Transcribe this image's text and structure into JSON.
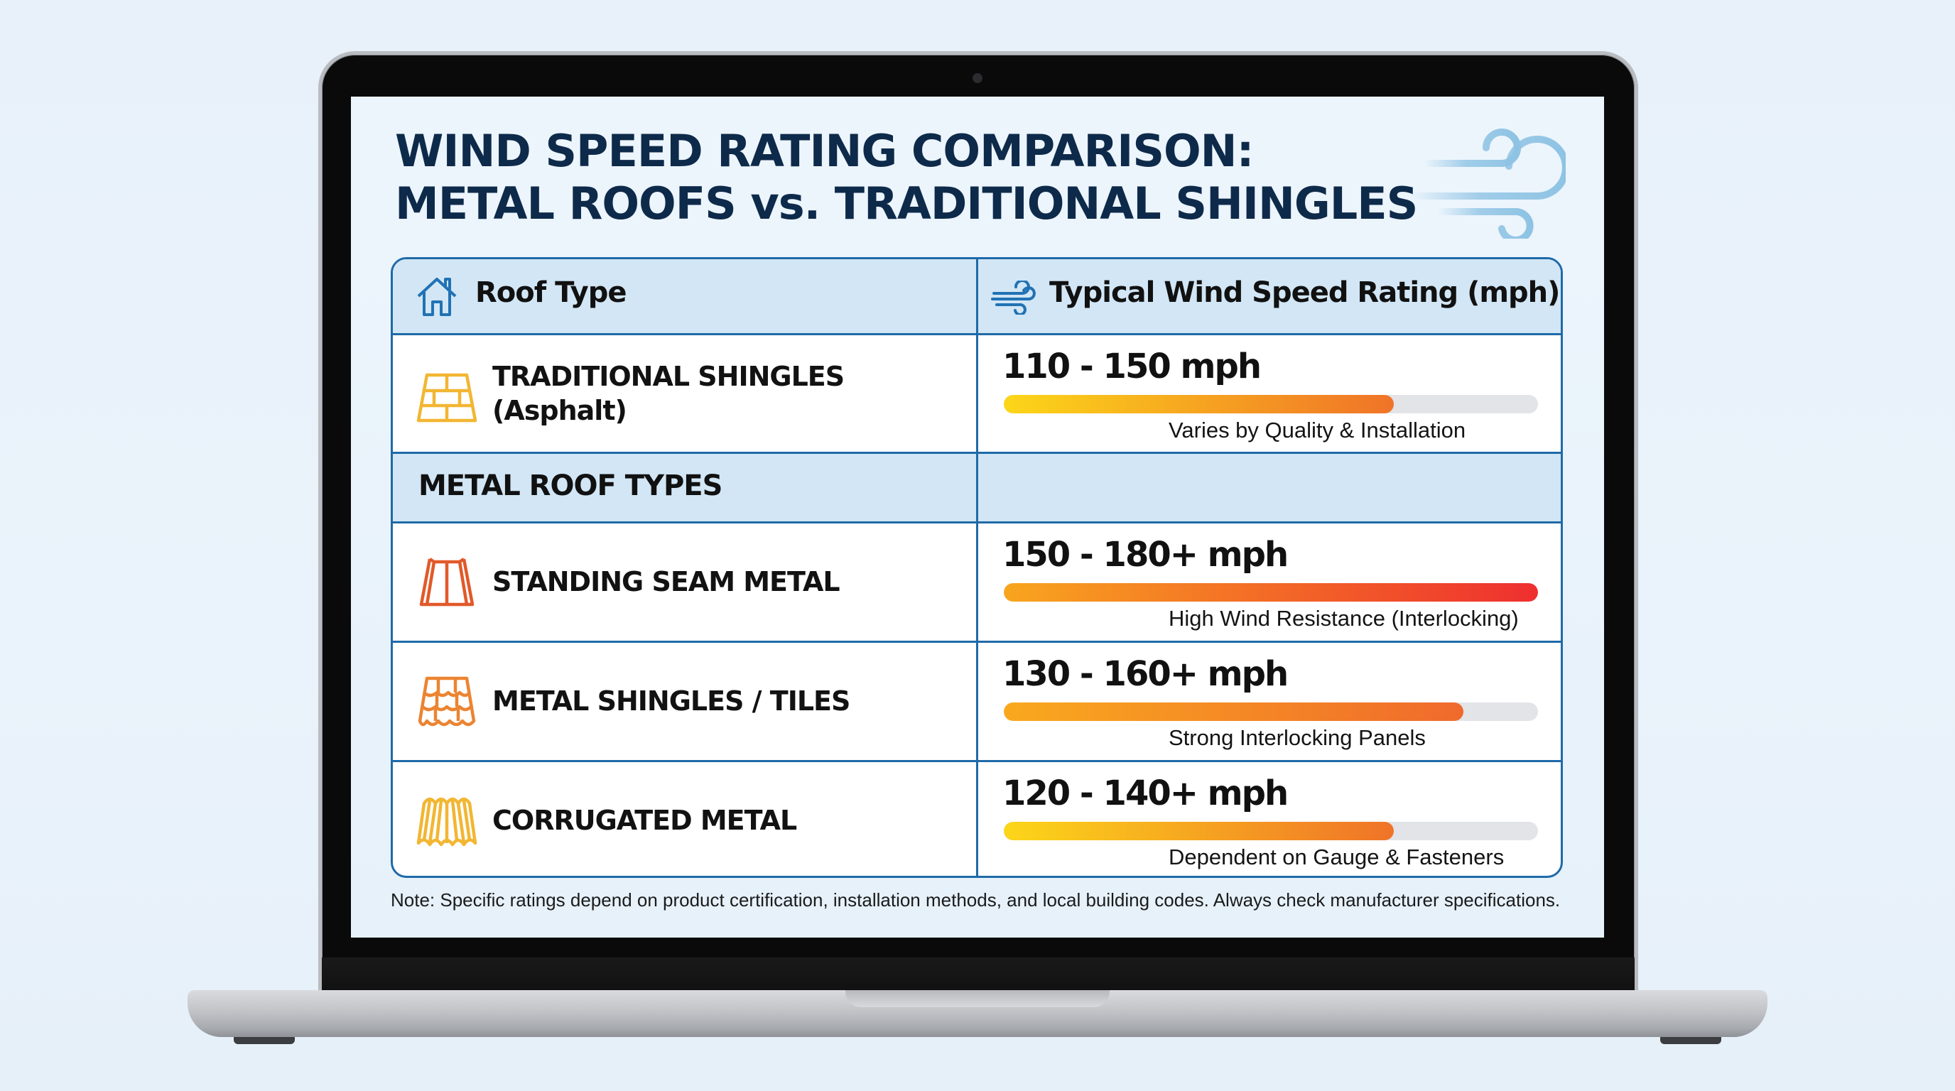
{
  "page": {
    "title_line1": "WIND SPEED RATING COMPARISON:",
    "title_line2": "METAL ROOFS vs. TRADITIONAL SHINGLES",
    "decor_icon": "wind-icon"
  },
  "table": {
    "headers": {
      "roof_type": {
        "label": "Roof Type",
        "icon": "house-icon"
      },
      "rating": {
        "label": "Typical Wind Speed Rating (mph)",
        "icon": "wind-icon"
      }
    },
    "section_label": "METAL ROOF TYPES",
    "rows": [
      {
        "name": "TRADITIONAL SHINGLES",
        "sub": "(Asphalt)",
        "icon": "asphalt-shingles-icon",
        "icon_color": "#f2b632",
        "rating": "110 - 150 mph",
        "note": "Varies by Quality & Installation",
        "bar_pct": 73,
        "bar_from": "#fcd619",
        "bar_to": "#f07328"
      },
      {
        "name": "STANDING SEAM METAL",
        "icon": "standing-seam-icon",
        "icon_color": "#e2592a",
        "rating": "150 - 180+ mph",
        "note": "High Wind Resistance (Interlocking)",
        "bar_pct": 100,
        "bar_from": "#f8a51f",
        "bar_to": "#ee2f2f"
      },
      {
        "name": "METAL SHINGLES / TILES",
        "icon": "metal-tiles-icon",
        "icon_color": "#ec8431",
        "rating": "130 - 160+ mph",
        "note": "Strong Interlocking Panels",
        "bar_pct": 86,
        "bar_from": "#f9a91e",
        "bar_to": "#f06a2c"
      },
      {
        "name": "CORRUGATED METAL",
        "icon": "corrugated-metal-icon",
        "icon_color": "#f2b632",
        "rating": "120 - 140+ mph",
        "note": "Dependent on Gauge & Fasteners",
        "bar_pct": 73,
        "bar_from": "#fcd619",
        "bar_to": "#f07328"
      }
    ]
  },
  "footer_note": "Note: Specific ratings depend on product certification, installation methods, and local building codes. Always check manufacturer specifications.",
  "colors": {
    "title": "#0e2a4a",
    "table_border": "#1f6aa8",
    "header_bg": "#d2e6f5",
    "bar_track": "#e2e4e8",
    "accent_blue": "#1f6aa8"
  }
}
